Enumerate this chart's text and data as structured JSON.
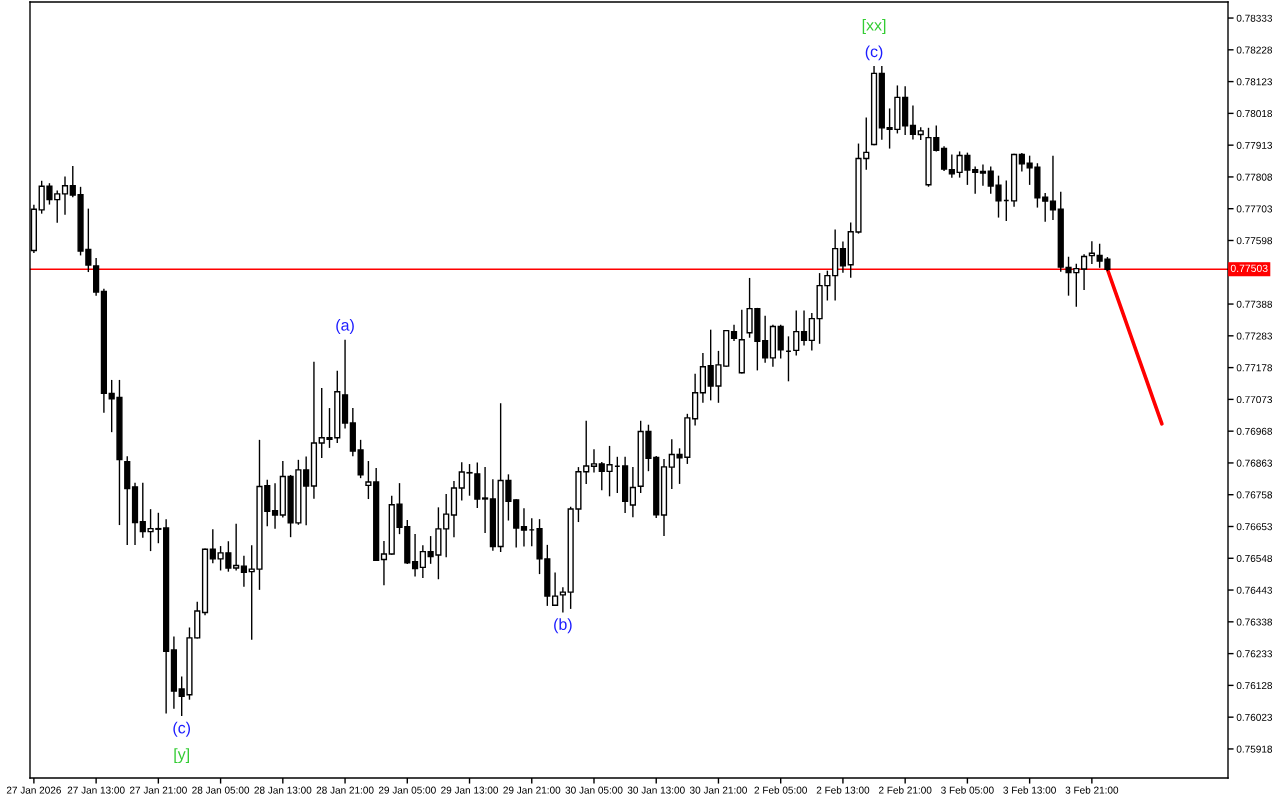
{
  "chart_data": {
    "type": "candlestick",
    "categories": [
      "27 Jan 2026",
      null,
      null,
      null,
      null,
      null,
      null,
      null,
      "27 Jan 13:00",
      null,
      null,
      null,
      null,
      null,
      null,
      null,
      "27 Jan 21:00",
      null,
      null,
      null,
      null,
      null,
      null,
      null,
      "28 Jan 05:00",
      null,
      null,
      null,
      null,
      null,
      null,
      null,
      "28 Jan 13:00",
      null,
      null,
      null,
      null,
      null,
      null,
      null,
      "28 Jan 21:00",
      null,
      null,
      null,
      null,
      null,
      null,
      null,
      "29 Jan 05:00",
      null,
      null,
      null,
      null,
      null,
      null,
      null,
      "29 Jan 13:00",
      null,
      null,
      null,
      null,
      null,
      null,
      null,
      "29 Jan 21:00",
      null,
      null,
      null,
      null,
      null,
      null,
      null,
      "30 Jan 05:00",
      null,
      null,
      null,
      null,
      null,
      null,
      null,
      "30 Jan 13:00",
      null,
      null,
      null,
      null,
      null,
      null,
      null,
      "30 Jan 21:00",
      null,
      null,
      null,
      null,
      null,
      null,
      null,
      "2 Feb 05:00",
      null,
      null,
      null,
      null,
      null,
      null,
      null,
      "2 Feb 13:00",
      null,
      null,
      null,
      null,
      null,
      null,
      null,
      "2 Feb 21:00",
      null,
      null,
      null,
      null,
      null,
      null,
      null,
      "3 Feb 05:00",
      null,
      null,
      null,
      null,
      null,
      null,
      null,
      "3 Feb 13:00",
      null,
      null,
      null,
      null,
      null,
      null,
      null,
      "3 Feb 21:00",
      null,
      null,
      null,
      null,
      null,
      null,
      null,
      null,
      null,
      null,
      null,
      null,
      null,
      null,
      null,
      null,
      null
    ],
    "ylim": [
      0.75822,
      0.78386
    ],
    "yticks": [
      0.78333,
      0.78228,
      0.78123,
      0.78018,
      0.77913,
      0.77808,
      0.77703,
      0.77598,
      0.77388,
      0.77283,
      0.77178,
      0.77073,
      0.76968,
      0.76863,
      0.76758,
      0.76653,
      0.76548,
      0.76443,
      0.76338,
      0.76233,
      0.76128,
      0.76023,
      0.75918
    ],
    "ref_lines": [
      {
        "axis": "y",
        "value": 0.77503,
        "label": "0.77503",
        "color": "#ff0000"
      }
    ],
    "annotations": [
      {
        "text": "(c)",
        "y": 0.76029
      },
      {
        "text": "[y]",
        "y": 0.76029
      },
      {
        "text": "(a)",
        "x": "28 Jan 21:00",
        "y": 0.77268
      },
      {
        "text": "(b)",
        "y": 0.76371
      },
      {
        "text": "(c)",
        "y": 0.78172
      },
      {
        "text": "[xx]",
        "y": 0.78172
      }
    ],
    "series": [
      {
        "color": "#000000",
        "ohlc": [
          [
            0.77565,
            0.77714,
            0.77559,
            0.77701
          ],
          [
            0.77699,
            0.77793,
            0.77689,
            0.77777
          ],
          [
            0.77777,
            0.77785,
            0.77719,
            0.77733
          ],
          [
            0.77733,
            0.77761,
            0.77659,
            0.77752
          ],
          [
            0.77752,
            0.77807,
            0.77685,
            0.77779
          ],
          [
            0.77779,
            0.77842,
            0.77743,
            0.77748
          ],
          [
            0.77749,
            0.77773,
            0.77551,
            0.77563
          ],
          [
            0.77568,
            0.77701,
            0.77496,
            0.77517
          ],
          [
            0.77514,
            0.77538,
            0.77418,
            0.77428
          ],
          [
            0.7743,
            0.77436,
            0.77031,
            0.77093
          ],
          [
            0.77093,
            0.77135,
            0.76967,
            0.77075
          ],
          [
            0.77079,
            0.77135,
            0.7666,
            0.76874
          ],
          [
            0.76867,
            0.76883,
            0.76594,
            0.76778
          ],
          [
            0.76784,
            0.76795,
            0.76594,
            0.76666
          ],
          [
            0.76669,
            0.76795,
            0.76618,
            0.76636
          ],
          [
            0.76636,
            0.76708,
            0.76574,
            0.76646
          ],
          [
            0.76646,
            0.76696,
            0.766,
            0.76644
          ],
          [
            0.76648,
            0.76675,
            0.76037,
            0.76241
          ],
          [
            0.76245,
            0.76287,
            0.76053,
            0.76109
          ],
          [
            0.76116,
            0.76155,
            0.76029,
            0.76092
          ],
          [
            0.76097,
            0.76317,
            0.76083,
            0.76285
          ],
          [
            0.76285,
            0.76402,
            0.76285,
            0.76374
          ],
          [
            0.76369,
            0.76578,
            0.76362,
            0.76578
          ],
          [
            0.76578,
            0.76642,
            0.76534,
            0.76546
          ],
          [
            0.76546,
            0.76586,
            0.7651,
            0.76566
          ],
          [
            0.76566,
            0.76602,
            0.76506,
            0.76516
          ],
          [
            0.76516,
            0.7666,
            0.7651,
            0.76524
          ],
          [
            0.76522,
            0.76554,
            0.76456,
            0.76502
          ],
          [
            0.76504,
            0.76589,
            0.76281,
            0.76512
          ],
          [
            0.76512,
            0.76937,
            0.76446,
            0.76785
          ],
          [
            0.76788,
            0.76805,
            0.76656,
            0.76703
          ],
          [
            0.76705,
            0.76794,
            0.76648,
            0.76691
          ],
          [
            0.76691,
            0.76867,
            0.76685,
            0.76818
          ],
          [
            0.76818,
            0.76821,
            0.7662,
            0.76665
          ],
          [
            0.76665,
            0.76871,
            0.76661,
            0.7684
          ],
          [
            0.7684,
            0.76882,
            0.76659,
            0.76787
          ],
          [
            0.76787,
            0.77195,
            0.76747,
            0.76929
          ],
          [
            0.76929,
            0.77108,
            0.76882,
            0.76946
          ],
          [
            0.76946,
            0.77042,
            0.76915,
            0.76941
          ],
          [
            0.76946,
            0.77165,
            0.76931,
            0.77098
          ],
          [
            0.77088,
            0.77268,
            0.76979,
            0.76995
          ],
          [
            0.76995,
            0.77042,
            0.76887,
            0.76902
          ],
          [
            0.76906,
            0.76937,
            0.76815,
            0.76824
          ],
          [
            0.76789,
            0.76867,
            0.76746,
            0.768
          ],
          [
            0.768,
            0.76844,
            0.76541,
            0.76541
          ],
          [
            0.76544,
            0.76603,
            0.76461,
            0.76562
          ],
          [
            0.76562,
            0.76752,
            0.76562,
            0.76725
          ],
          [
            0.76727,
            0.76794,
            0.7663,
            0.7665
          ],
          [
            0.76652,
            0.76672,
            0.76531,
            0.76533
          ],
          [
            0.76537,
            0.76626,
            0.7649,
            0.76514
          ],
          [
            0.76518,
            0.76589,
            0.76485,
            0.7657
          ],
          [
            0.7657,
            0.76619,
            0.76532,
            0.76554
          ],
          [
            0.76559,
            0.76714,
            0.76481,
            0.76645
          ],
          [
            0.76645,
            0.76758,
            0.76554,
            0.76694
          ],
          [
            0.76691,
            0.76801,
            0.7662,
            0.7678
          ],
          [
            0.7678,
            0.76863,
            0.76741,
            0.76833
          ],
          [
            0.7683,
            0.76857,
            0.76757,
            0.76831
          ],
          [
            0.76827,
            0.76862,
            0.76716,
            0.76744
          ],
          [
            0.76747,
            0.76847,
            0.76634,
            0.76744
          ],
          [
            0.76744,
            0.76807,
            0.76575,
            0.76587
          ],
          [
            0.76587,
            0.77058,
            0.76571,
            0.76805
          ],
          [
            0.76805,
            0.76823,
            0.76675,
            0.76736
          ],
          [
            0.76741,
            0.76741,
            0.76586,
            0.76648
          ],
          [
            0.76652,
            0.76711,
            0.76589,
            0.76641
          ],
          [
            0.76642,
            0.76678,
            0.7659,
            0.76642
          ],
          [
            0.76646,
            0.76675,
            0.76498,
            0.76546
          ],
          [
            0.76546,
            0.7659,
            0.76393,
            0.76423
          ],
          [
            0.76393,
            0.76499,
            0.76393,
            0.76423
          ],
          [
            0.76427,
            0.7645,
            0.76371,
            0.76436
          ],
          [
            0.76436,
            0.76716,
            0.76383,
            0.76711
          ],
          [
            0.76711,
            0.76847,
            0.7667,
            0.76834
          ],
          [
            0.76834,
            0.77,
            0.76796,
            0.76853
          ],
          [
            0.76852,
            0.76906,
            0.76834,
            0.7686
          ],
          [
            0.7686,
            0.76864,
            0.76775,
            0.76835
          ],
          [
            0.76835,
            0.76917,
            0.76755,
            0.76857
          ],
          [
            0.76852,
            0.76881,
            0.76766,
            0.76852
          ],
          [
            0.76853,
            0.76881,
            0.767,
            0.76736
          ],
          [
            0.76724,
            0.76847,
            0.76686,
            0.76782
          ],
          [
            0.76786,
            0.77,
            0.76766,
            0.76967
          ],
          [
            0.76967,
            0.76987,
            0.76838,
            0.76878
          ],
          [
            0.76881,
            0.76884,
            0.76683,
            0.76692
          ],
          [
            0.76691,
            0.76874,
            0.76624,
            0.7685
          ],
          [
            0.76849,
            0.76939,
            0.76779,
            0.76891
          ],
          [
            0.76891,
            0.76909,
            0.76796,
            0.7688
          ],
          [
            0.76882,
            0.77023,
            0.76862,
            0.77012
          ],
          [
            0.77009,
            0.77155,
            0.76989,
            0.77095
          ],
          [
            0.77095,
            0.77224,
            0.77064,
            0.77181
          ],
          [
            0.77184,
            0.77301,
            0.77072,
            0.77117
          ],
          [
            0.77117,
            0.77231,
            0.77064,
            0.77187
          ],
          [
            0.77183,
            0.773,
            0.77183,
            0.773
          ],
          [
            0.77297,
            0.77317,
            0.77268,
            0.77275
          ],
          [
            0.77161,
            0.77367,
            0.77161,
            0.7727
          ],
          [
            0.77293,
            0.77472,
            0.77279,
            0.77373
          ],
          [
            0.77373,
            0.77373,
            0.77171,
            0.77265
          ],
          [
            0.77267,
            0.77347,
            0.77196,
            0.7721
          ],
          [
            0.7721,
            0.77317,
            0.77183,
            0.77314
          ],
          [
            0.77314,
            0.77317,
            0.7721,
            0.77237
          ],
          [
            0.77232,
            0.77279,
            0.77135,
            0.77232
          ],
          [
            0.77235,
            0.77364,
            0.7722,
            0.77297
          ],
          [
            0.77297,
            0.77364,
            0.77253,
            0.77268
          ],
          [
            0.77268,
            0.77356,
            0.77237,
            0.7734
          ],
          [
            0.7734,
            0.77488,
            0.77259,
            0.77449
          ],
          [
            0.77449,
            0.77496,
            0.77402,
            0.77482
          ],
          [
            0.77482,
            0.77632,
            0.77402,
            0.77571
          ],
          [
            0.77571,
            0.77592,
            0.77494,
            0.77514
          ],
          [
            0.77518,
            0.77655,
            0.77477,
            0.77627
          ],
          [
            0.77626,
            0.77916,
            0.77623,
            0.77869
          ],
          [
            0.77869,
            0.78002,
            0.77834,
            0.77889
          ],
          [
            0.77915,
            0.78172,
            0.77915,
            0.7815
          ],
          [
            0.7815,
            0.78172,
            0.77933,
            0.7797
          ],
          [
            0.77971,
            0.78032,
            0.77904,
            0.77965
          ],
          [
            0.77965,
            0.78108,
            0.77954,
            0.78071
          ],
          [
            0.78071,
            0.78105,
            0.77949,
            0.77977
          ],
          [
            0.77978,
            0.78042,
            0.77934,
            0.77949
          ],
          [
            0.77948,
            0.7797,
            0.77932,
            0.7796
          ],
          [
            0.77782,
            0.77968,
            0.77778,
            0.77938
          ],
          [
            0.77938,
            0.77976,
            0.77894,
            0.77896
          ],
          [
            0.77902,
            0.77907,
            0.7783,
            0.77834
          ],
          [
            0.77832,
            0.7788,
            0.77808,
            0.77818
          ],
          [
            0.77823,
            0.7789,
            0.77808,
            0.77879
          ],
          [
            0.77879,
            0.77886,
            0.77784,
            0.77831
          ],
          [
            0.77832,
            0.7784,
            0.77755,
            0.77823
          ],
          [
            0.77826,
            0.77847,
            0.77781,
            0.77821
          ],
          [
            0.77827,
            0.7784,
            0.77755,
            0.77778
          ],
          [
            0.77781,
            0.7781,
            0.77676,
            0.77729
          ],
          [
            0.7773,
            0.77794,
            0.77665,
            0.7773
          ],
          [
            0.77729,
            0.77882,
            0.77712,
            0.77882
          ],
          [
            0.77882,
            0.77885,
            0.77828,
            0.77851
          ],
          [
            0.77853,
            0.77876,
            0.77784,
            0.77838
          ],
          [
            0.7784,
            0.77851,
            0.77709,
            0.77739
          ],
          [
            0.77741,
            0.77753,
            0.77662,
            0.77728
          ],
          [
            0.77728,
            0.77876,
            0.77668,
            0.77699
          ],
          [
            0.77701,
            0.77757,
            0.77497,
            0.7751
          ],
          [
            0.77509,
            0.77542,
            0.77418,
            0.77492
          ],
          [
            0.77492,
            0.77519,
            0.77381,
            0.77505
          ],
          [
            0.77504,
            0.7755,
            0.77437,
            0.77545
          ],
          [
            0.77548,
            0.77593,
            0.77523,
            0.77556
          ],
          [
            0.77549,
            0.77585,
            0.7751,
            0.7753
          ],
          [
            0.77536,
            0.77541,
            0.77499,
            0.77503
          ],
          null,
          null,
          null,
          null,
          null,
          null,
          null,
          null,
          null,
          null,
          null,
          null,
          null,
          null,
          null
        ]
      },
      {
        "type": "line",
        "color": "#ff0000",
        "values": [
          null,
          null,
          null,
          null,
          null,
          null,
          null,
          null,
          null,
          null,
          null,
          null,
          null,
          null,
          null,
          null,
          null,
          null,
          null,
          null,
          null,
          null,
          null,
          null,
          null,
          null,
          null,
          null,
          null,
          null,
          null,
          null,
          null,
          null,
          null,
          null,
          null,
          null,
          null,
          null,
          null,
          null,
          null,
          null,
          null,
          null,
          null,
          null,
          null,
          null,
          null,
          null,
          null,
          null,
          null,
          null,
          null,
          null,
          null,
          null,
          null,
          null,
          null,
          null,
          null,
          null,
          null,
          null,
          null,
          null,
          null,
          null,
          null,
          null,
          null,
          null,
          null,
          null,
          null,
          null,
          null,
          null,
          null,
          null,
          null,
          null,
          null,
          null,
          null,
          null,
          null,
          null,
          null,
          null,
          null,
          null,
          null,
          null,
          null,
          null,
          null,
          null,
          null,
          null,
          null,
          null,
          null,
          null,
          null,
          null,
          null,
          null,
          null,
          null,
          null,
          null,
          null,
          null,
          null,
          null,
          null,
          null,
          null,
          null,
          null,
          null,
          null,
          null,
          null,
          null,
          null,
          null,
          null,
          null,
          null,
          null,
          null,
          null,
          0.77503,
          0.7743,
          0.77357,
          0.77284,
          0.77211,
          0.77138,
          0.77065,
          0.76992,
          null,
          null,
          null,
          null,
          null,
          null,
          null,
          null
        ]
      }
    ]
  }
}
